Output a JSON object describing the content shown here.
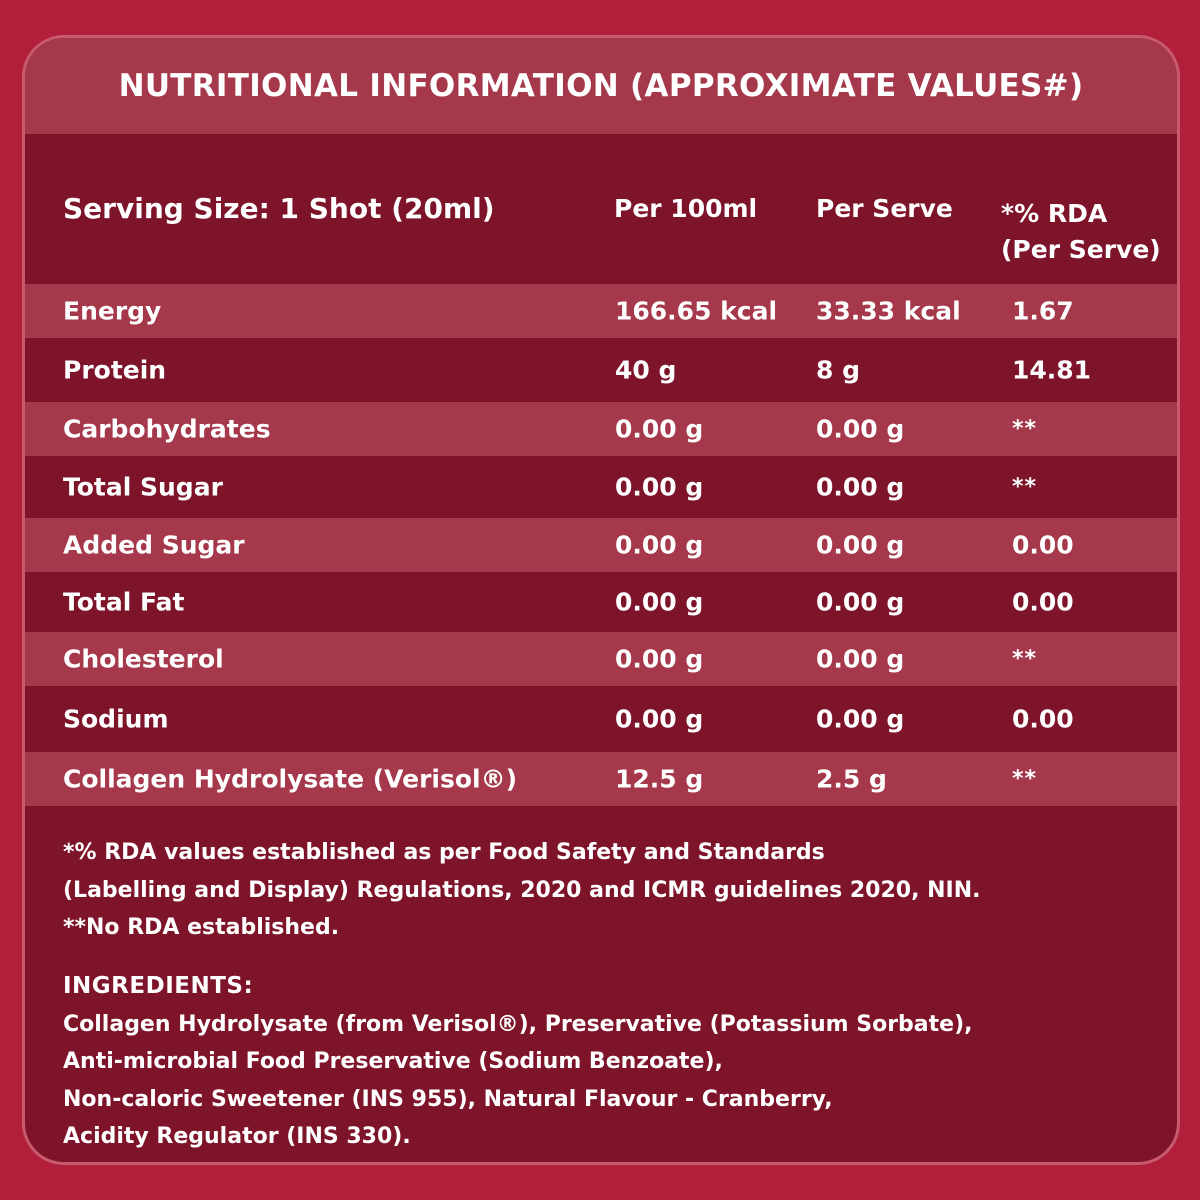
{
  "title": "NUTRITIONAL INFORMATION (APPROXIMATE VALUES#)",
  "header": {
    "serving_size": "Serving Size: 1 Shot (20ml)",
    "per_100ml": "Per 100ml",
    "per_serve": "Per Serve",
    "rda_line1": "*% RDA",
    "rda_line2": "(Per Serve)"
  },
  "rows": [
    {
      "name": "Energy",
      "per_100ml": "166.65 kcal",
      "per_serve": "33.33 kcal",
      "rda": "1.67"
    },
    {
      "name": "Protein",
      "per_100ml": "40 g",
      "per_serve": "8 g",
      "rda": "14.81"
    },
    {
      "name": "Carbohydrates",
      "per_100ml": "0.00 g",
      "per_serve": "0.00 g",
      "rda": "**"
    },
    {
      "name": "Total Sugar",
      "per_100ml": "0.00 g",
      "per_serve": "0.00 g",
      "rda": "**"
    },
    {
      "name": "Added Sugar",
      "per_100ml": "0.00 g",
      "per_serve": "0.00 g",
      "rda": "0.00"
    },
    {
      "name": "Total Fat",
      "per_100ml": "0.00 g",
      "per_serve": "0.00 g",
      "rda": "0.00"
    },
    {
      "name": "Cholesterol",
      "per_100ml": "0.00 g",
      "per_serve": "0.00 g",
      "rda": "**"
    },
    {
      "name": "Sodium",
      "per_100ml": "0.00 g",
      "per_serve": "0.00 g",
      "rda": "0.00"
    },
    {
      "name": "Collagen Hydrolysate (Verisol®)",
      "per_100ml": "12.5 g",
      "per_serve": "2.5 g",
      "rda": "**"
    }
  ],
  "footnotes": [
    "*% RDA values established as per Food Safety and Standards",
    "(Labelling and Display) Regulations, 2020 and ICMR guidelines 2020, NIN.",
    "**No RDA established."
  ],
  "ingredients": {
    "title": "INGREDIENTS:",
    "lines": [
      "Collagen Hydrolysate (from Verisol®), Preservative (Potassium Sorbate),",
      "Anti-microbial Food Preservative (Sodium Benzoate),",
      "Non-caloric Sweetener (INS 955), Natural Flavour - Cranberry,",
      "Acidity Regulator (INS 330)."
    ]
  },
  "colors": {
    "background": "#b21f3b",
    "panel_dark": "#7e1429",
    "panel_light": "#a5384b",
    "border": "#c85a6c",
    "text": "#ffffff"
  }
}
